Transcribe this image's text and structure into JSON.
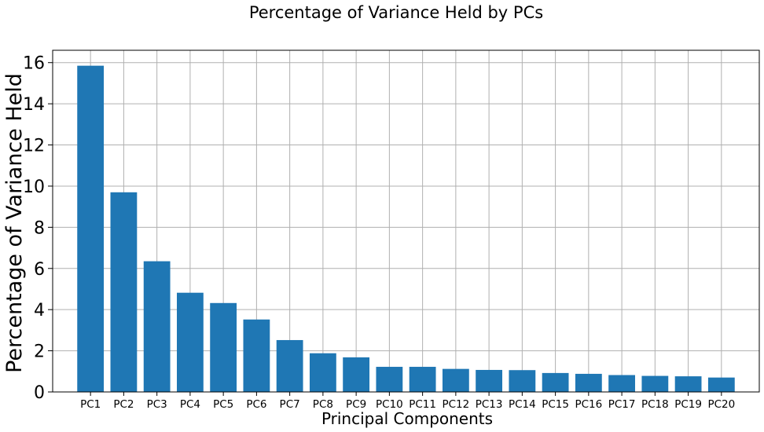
{
  "chart_data": {
    "type": "bar",
    "title": "Percentage of Variance Held by PCs",
    "xlabel": "Principal Components",
    "ylabel": "Percentage of Variance Held",
    "categories": [
      "PC1",
      "PC2",
      "PC3",
      "PC4",
      "PC5",
      "PC6",
      "PC7",
      "PC8",
      "PC9",
      "PC10",
      "PC11",
      "PC12",
      "PC13",
      "PC14",
      "PC15",
      "PC16",
      "PC17",
      "PC18",
      "PC19",
      "PC20"
    ],
    "values": [
      15.85,
      9.7,
      6.35,
      4.82,
      4.32,
      3.52,
      2.52,
      1.88,
      1.68,
      1.22,
      1.22,
      1.12,
      1.07,
      1.06,
      0.92,
      0.88,
      0.82,
      0.78,
      0.76,
      0.7
    ],
    "ylim": [
      0,
      16.6
    ],
    "yticks": [
      0,
      2,
      4,
      6,
      8,
      10,
      12,
      14,
      16
    ],
    "grid": true,
    "bar_color": "#1f77b4",
    "grid_color": "#b0b0b0"
  }
}
